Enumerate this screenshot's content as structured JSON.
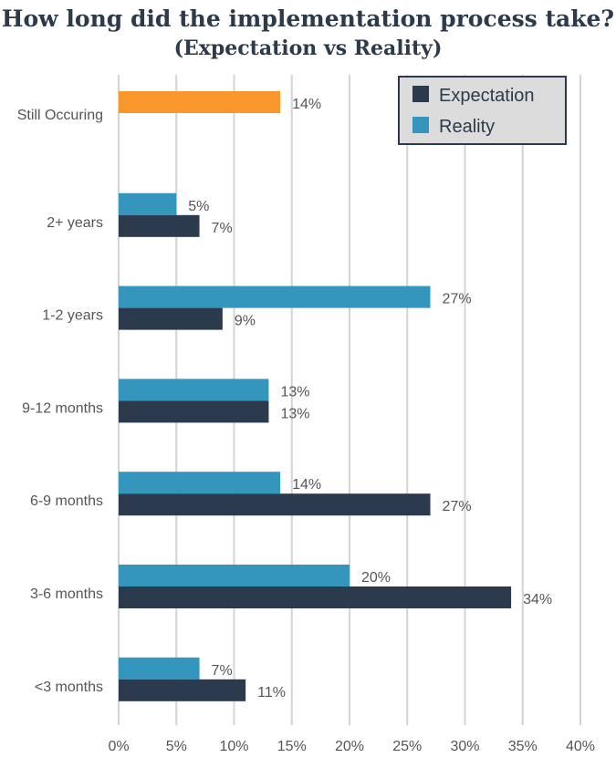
{
  "chart_data": {
    "type": "bar",
    "orientation": "horizontal",
    "title": "How long did the implementation process take?",
    "subtitle": "(Expectation vs Reality)",
    "categories": [
      "Still Occuring",
      "2+ years",
      "1-2 years",
      "9-12 months",
      "6-9 months",
      "3-6 months",
      "<3 months"
    ],
    "series": [
      {
        "name": "Reality",
        "color": "#3596bd",
        "values": [
          14,
          5,
          27,
          13,
          14,
          20,
          7
        ]
      },
      {
        "name": "Expectation",
        "color": "#2c3a4d",
        "values": [
          null,
          7,
          9,
          13,
          27,
          34,
          11
        ]
      }
    ],
    "highlight": {
      "category": "Still Occuring",
      "series": "Reality",
      "color": "#f9962c"
    },
    "data_labels": {
      "Reality": [
        "14%",
        "5%",
        "27%",
        "13%",
        "14%",
        "20%",
        "7%"
      ],
      "Expectation": [
        "",
        "7%",
        "9%",
        "13%",
        "27%",
        "34%",
        "11%"
      ]
    },
    "xlim": [
      0,
      40
    ],
    "x_ticks": [
      0,
      5,
      10,
      15,
      20,
      25,
      30,
      35,
      40
    ],
    "x_tick_labels": [
      "0%",
      "5%",
      "10%",
      "15%",
      "20%",
      "25%",
      "30%",
      "35%",
      "40%"
    ],
    "grid": "vertical",
    "legend": {
      "position": "top-right",
      "entries": [
        {
          "label": "Expectation",
          "color": "#2c3a4d"
        },
        {
          "label": "Reality",
          "color": "#3596bd"
        }
      ]
    }
  }
}
